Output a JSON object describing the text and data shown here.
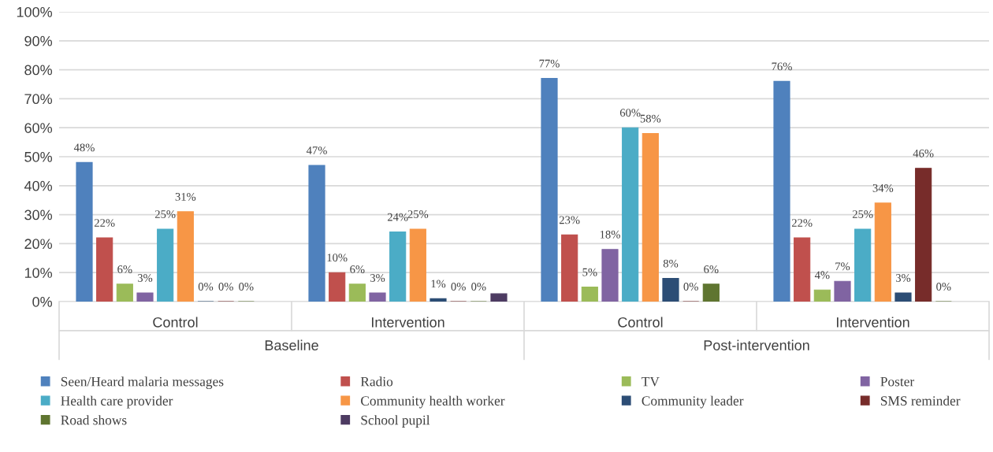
{
  "chart_data": {
    "type": "bar",
    "categories": [
      "Control",
      "Intervention",
      "Control",
      "Intervention"
    ],
    "annotations": [
      "Baseline",
      "Post-intervention"
    ],
    "ylim": [
      0,
      100
    ],
    "yticks": [
      {
        "value": 0,
        "label": "0%"
      },
      {
        "value": 10,
        "label": "10%"
      },
      {
        "value": 20,
        "label": "20%"
      },
      {
        "value": 30,
        "label": "30%"
      },
      {
        "value": 40,
        "label": "40%"
      },
      {
        "value": 50,
        "label": "50%"
      },
      {
        "value": 60,
        "label": "60%"
      },
      {
        "value": 70,
        "label": "70%"
      },
      {
        "value": 80,
        "label": "80%"
      },
      {
        "value": 90,
        "label": "90%"
      },
      {
        "value": 100,
        "label": "100%"
      }
    ],
    "grid": "y",
    "legend": "bottom",
    "series": [
      {
        "name": "Seen/Heard malaria messages",
        "color": "#4f81bd",
        "values": [
          48,
          47,
          77,
          76
        ],
        "value_labels": [
          "48%",
          "47%",
          "77%",
          "76%"
        ]
      },
      {
        "name": "Radio",
        "color": "#c0504d",
        "values": [
          22,
          10,
          23,
          22
        ],
        "value_labels": [
          "22%",
          "10%",
          "23%",
          "22%"
        ]
      },
      {
        "name": "TV",
        "color": "#9bbb59",
        "values": [
          6,
          6,
          5,
          4
        ],
        "value_labels": [
          "6%",
          "6%",
          "5%",
          "4%"
        ]
      },
      {
        "name": "Poster",
        "color": "#8064a2",
        "values": [
          3,
          3,
          18,
          7
        ],
        "value_labels": [
          "3%",
          "3%",
          "18%",
          "7%"
        ]
      },
      {
        "name": "Health care provider",
        "color": "#4bacc6",
        "values": [
          25,
          24,
          60,
          25
        ],
        "value_labels": [
          "25%",
          "24%",
          "60%",
          "25%"
        ]
      },
      {
        "name": "Community health worker",
        "color": "#f79646",
        "values": [
          31,
          25,
          58,
          34
        ],
        "value_labels": [
          "31%",
          "25%",
          "58%",
          "34%"
        ]
      },
      {
        "name": "Community leader",
        "color": "#2c4d75",
        "values": [
          0,
          1,
          8,
          3
        ],
        "value_labels": [
          "0%",
          "1%",
          "8%",
          "3%"
        ]
      },
      {
        "name": "SMS reminder",
        "color": "#772c2a",
        "values": [
          0,
          0,
          0,
          46
        ],
        "value_labels": [
          "0%",
          "0%",
          "0%",
          "46%"
        ]
      },
      {
        "name": "Road shows",
        "color": "#5f7530",
        "values": [
          0,
          0,
          6,
          0
        ],
        "value_labels": [
          "0%",
          "0%",
          "6%",
          "0%"
        ]
      },
      {
        "name": "School pupil",
        "color": "#4d3b62",
        "values": [
          null,
          2.7,
          null,
          null
        ],
        "value_labels": [
          null,
          null,
          null,
          null
        ]
      }
    ]
  }
}
